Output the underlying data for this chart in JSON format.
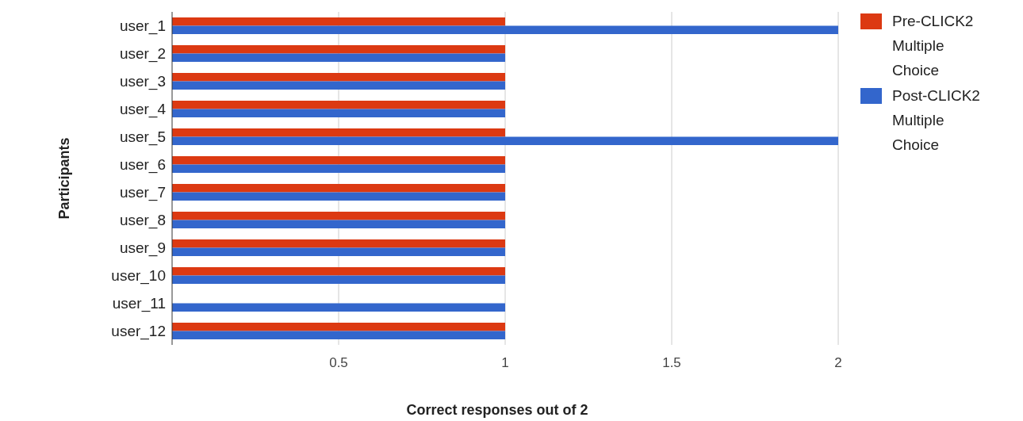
{
  "chart_data": {
    "type": "bar",
    "orientation": "horizontal",
    "xlabel": "Correct responses out of 2",
    "ylabel": "Participants",
    "categories": [
      "user_1",
      "user_2",
      "user_3",
      "user_4",
      "user_5",
      "user_6",
      "user_7",
      "user_8",
      "user_9",
      "user_10",
      "user_11",
      "user_12"
    ],
    "series": [
      {
        "name": "Pre-CLICK2 Multiple Choice",
        "color": "#dc3912",
        "values": [
          1,
          1,
          1,
          1,
          1,
          1,
          1,
          1,
          1,
          1,
          0,
          1
        ]
      },
      {
        "name": "Post-CLICK2 Multiple Choice",
        "color": "#3366cc",
        "values": [
          2,
          1,
          1,
          1,
          2,
          1,
          1,
          1,
          1,
          1,
          1,
          1
        ]
      }
    ],
    "xlim": [
      0,
      2
    ],
    "xticks": [
      0.5,
      1,
      1.5,
      2
    ],
    "grid": "x",
    "legend": "right"
  }
}
